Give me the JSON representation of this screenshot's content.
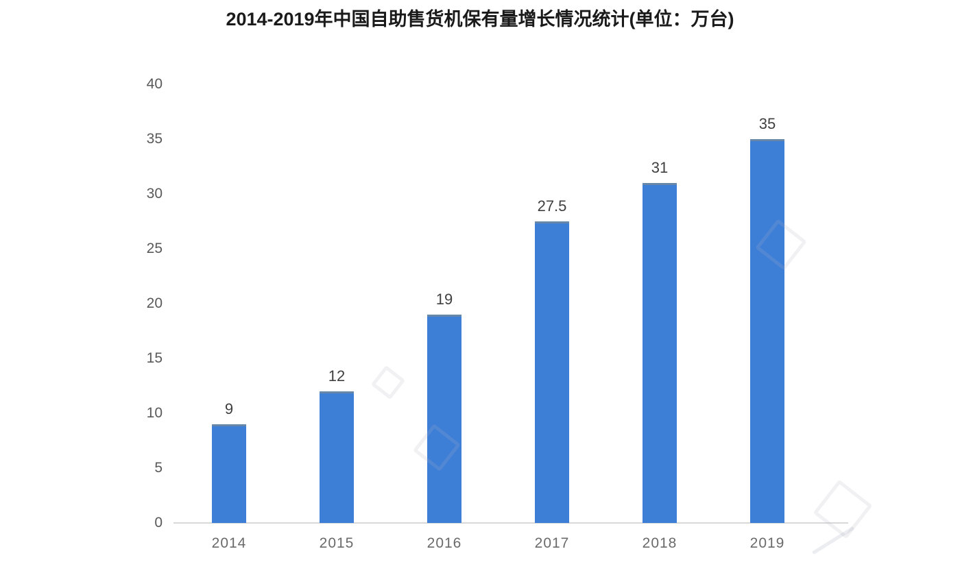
{
  "title": "2014-2019年中国自助售货机保有量增长情况统计(单位：万台)",
  "colors": {
    "background": "#FFFFFF",
    "bar": "#3D7ED7",
    "bar_top_edge": "#6787A9",
    "axis_line": "#D8D8D8",
    "title_text": "#1A1A1A",
    "ytick_text": "#595959",
    "xtick_text": "#6A6A6A",
    "value_label_text": "#3F3F3F"
  },
  "chart_data": {
    "type": "bar",
    "title": "2014-2019年中国自助售货机保有量增长情况统计(单位：万台)",
    "categories": [
      "2014",
      "2015",
      "2016",
      "2017",
      "2018",
      "2019"
    ],
    "values": [
      9,
      12,
      19,
      27.5,
      31,
      35
    ],
    "value_labels": [
      "9",
      "12",
      "19",
      "27.5",
      "31",
      "35"
    ],
    "series_name": "自助售货机保有量",
    "unit": "万台",
    "xlabel": "",
    "ylabel": "",
    "ylim": [
      0,
      40
    ],
    "yticks": [
      0,
      5,
      10,
      15,
      20,
      25,
      30,
      35,
      40
    ],
    "ytick_labels": [
      "0",
      "5",
      "10",
      "15",
      "20",
      "25",
      "30",
      "35",
      "40"
    ],
    "grid": false,
    "legend": "none"
  }
}
